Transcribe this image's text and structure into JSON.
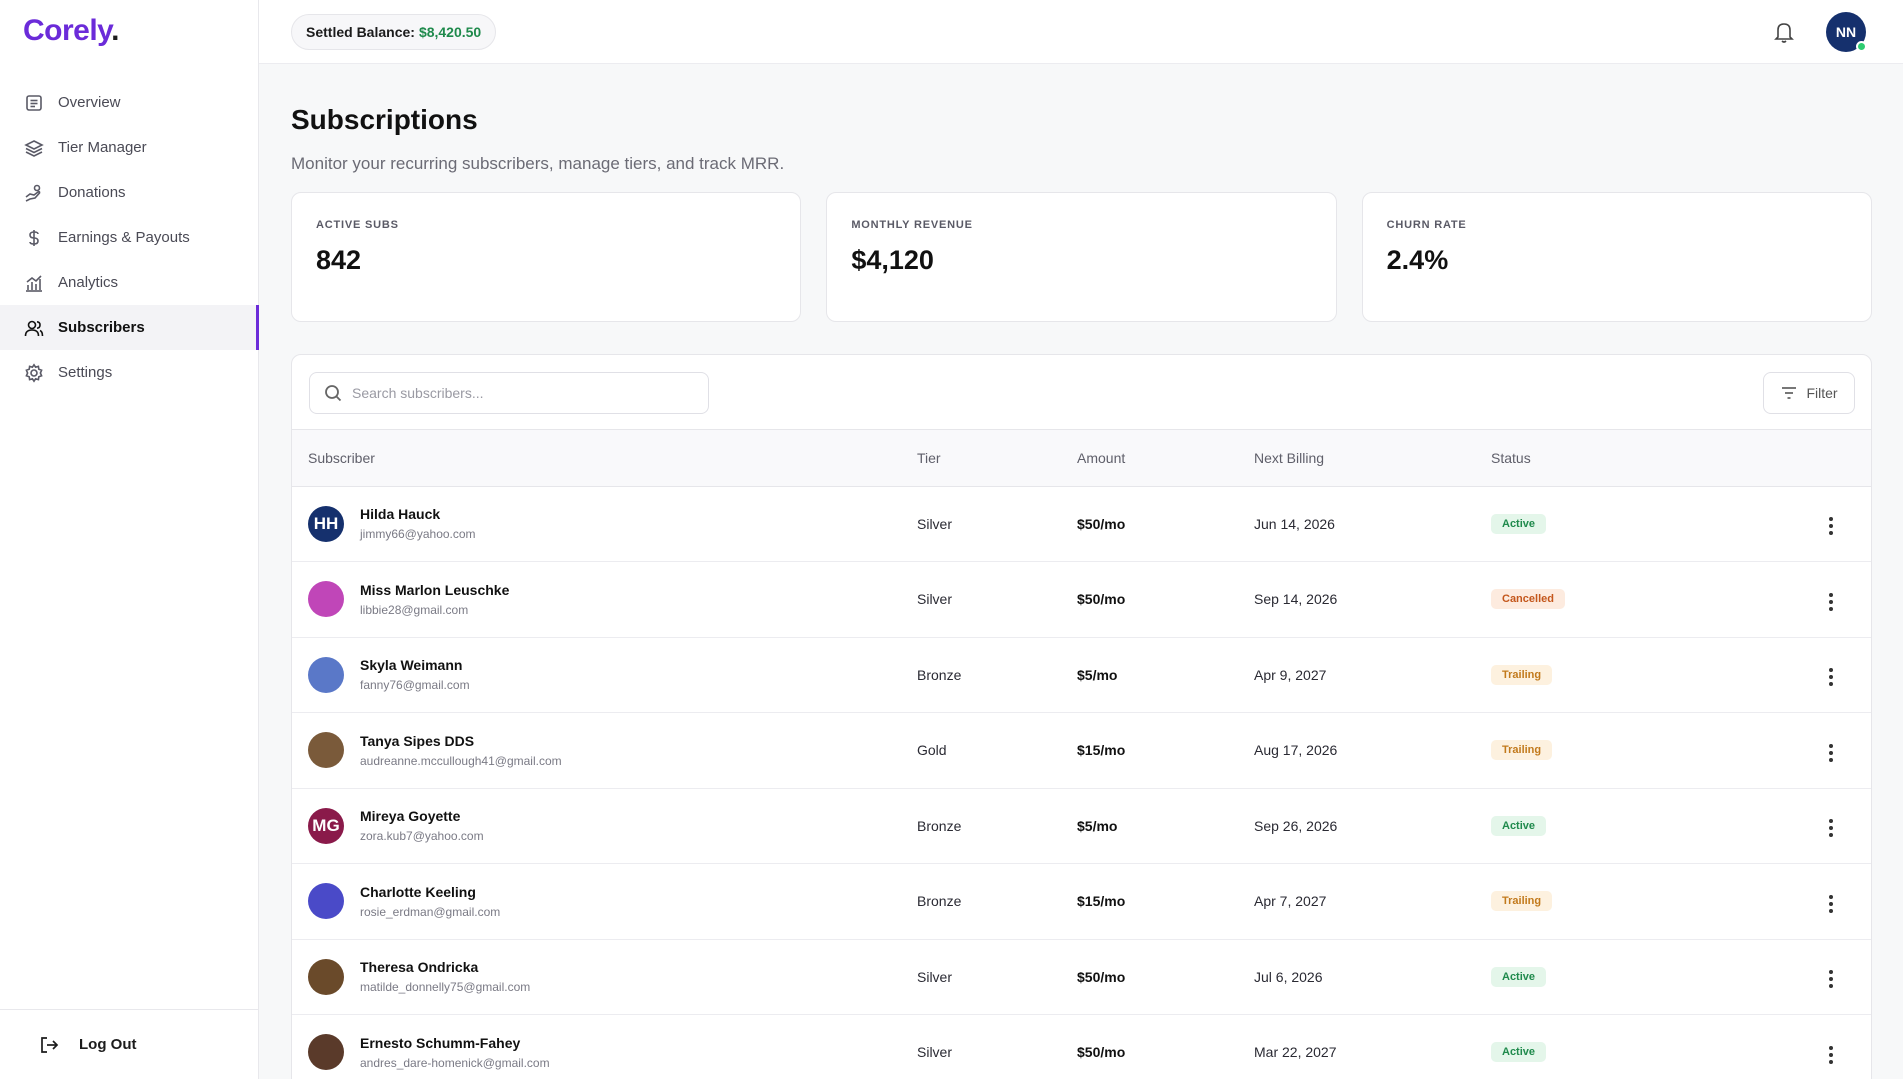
{
  "brand": {
    "name": "Corely",
    "dot": "."
  },
  "sidebar": {
    "items": [
      {
        "label": "Overview",
        "icon": "document-icon"
      },
      {
        "label": "Tier Manager",
        "icon": "layers-icon"
      },
      {
        "label": "Donations",
        "icon": "donation-icon"
      },
      {
        "label": "Earnings & Payouts",
        "icon": "dollar-icon"
      },
      {
        "label": "Analytics",
        "icon": "chart-icon"
      },
      {
        "label": "Subscribers",
        "icon": "users-icon",
        "active": true
      },
      {
        "label": "Settings",
        "icon": "gear-icon"
      }
    ],
    "logout_label": "Log Out"
  },
  "topbar": {
    "balance_label": "Settled Balance:",
    "balance_value": "$8,420.50",
    "user_initials": "NN"
  },
  "page": {
    "title": "Subscriptions",
    "subtitle": "Monitor your recurring subscribers, manage tiers, and track MRR."
  },
  "stats": [
    {
      "label": "ACTIVE SUBS",
      "value": "842"
    },
    {
      "label": "MONTHLY REVENUE",
      "value": "$4,120"
    },
    {
      "label": "CHURN RATE",
      "value": "2.4%"
    }
  ],
  "search": {
    "placeholder": "Search subscribers..."
  },
  "filter_label": "Filter",
  "table": {
    "headers": {
      "subscriber": "Subscriber",
      "tier": "Tier",
      "amount": "Amount",
      "next_billing": "Next Billing",
      "status": "Status"
    },
    "rows": [
      {
        "name": "Hilda Hauck",
        "email": "jimmy66@yahoo.com",
        "tier": "Silver",
        "amount": "$50/mo",
        "next_billing": "Jun 14, 2026",
        "status": "Active",
        "avatar_initials": "HH",
        "avatar_color": "#15306d"
      },
      {
        "name": "Miss Marlon Leuschke",
        "email": "libbie28@gmail.com",
        "tier": "Silver",
        "amount": "$50/mo",
        "next_billing": "Sep 14, 2026",
        "status": "Cancelled",
        "avatar_initials": "",
        "avatar_color": "#c046b8"
      },
      {
        "name": "Skyla Weimann",
        "email": "fanny76@gmail.com",
        "tier": "Bronze",
        "amount": "$5/mo",
        "next_billing": "Apr 9, 2027",
        "status": "Trailing",
        "avatar_initials": "",
        "avatar_color": "#5a78c8"
      },
      {
        "name": "Tanya Sipes DDS",
        "email": "audreanne.mccullough41@gmail.com",
        "tier": "Gold",
        "amount": "$15/mo",
        "next_billing": "Aug 17, 2026",
        "status": "Trailing",
        "avatar_initials": "",
        "avatar_color": "#7a5a3a"
      },
      {
        "name": "Mireya Goyette",
        "email": "zora.kub7@yahoo.com",
        "tier": "Bronze",
        "amount": "$5/mo",
        "next_billing": "Sep 26, 2026",
        "status": "Active",
        "avatar_initials": "MG",
        "avatar_color": "#8a1a4a"
      },
      {
        "name": "Charlotte Keeling",
        "email": "rosie_erdman@gmail.com",
        "tier": "Bronze",
        "amount": "$15/mo",
        "next_billing": "Apr 7, 2027",
        "status": "Trailing",
        "avatar_initials": "",
        "avatar_color": "#4a4ac8"
      },
      {
        "name": "Theresa Ondricka",
        "email": "matilde_donnelly75@gmail.com",
        "tier": "Silver",
        "amount": "$50/mo",
        "next_billing": "Jul 6, 2026",
        "status": "Active",
        "avatar_initials": "",
        "avatar_color": "#6a4a2a"
      },
      {
        "name": "Ernesto Schumm-Fahey",
        "email": "andres_dare-homenick@gmail.com",
        "tier": "Silver",
        "amount": "$50/mo",
        "next_billing": "Mar 22, 2027",
        "status": "Active",
        "avatar_initials": "",
        "avatar_color": "#5a3a2a"
      }
    ]
  },
  "colors": {
    "brand": "#6b2bd9",
    "active": "#1f8a4c",
    "cancelled": "#c4571c",
    "trailing": "#c27a1c"
  }
}
